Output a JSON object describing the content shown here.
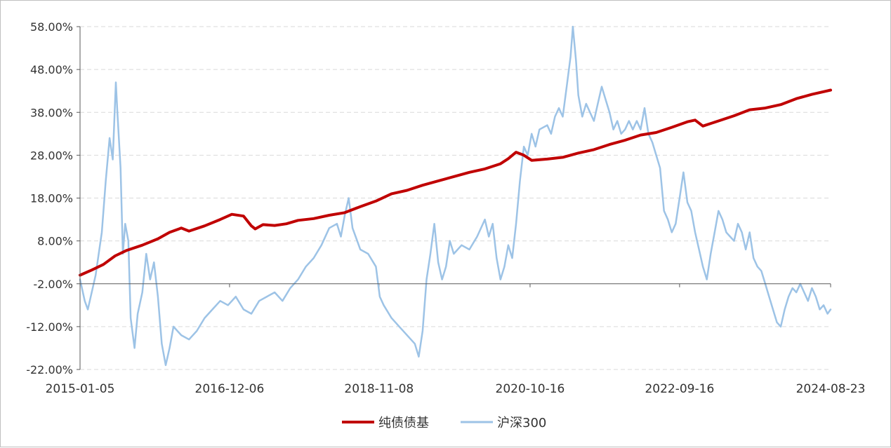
{
  "chart_data": {
    "type": "line",
    "title": "",
    "xlabel": "",
    "ylabel": "",
    "ylim": [
      -22,
      58
    ],
    "y_ticks": [
      "58.00%",
      "48.00%",
      "38.00%",
      "28.00%",
      "18.00%",
      "8.00%",
      "-2.00%",
      "-12.00%",
      "-22.00%"
    ],
    "x_tick_labels": [
      "2015-01-05",
      "2016-12-06",
      "2018-11-08",
      "2020-10-16",
      "2022-09-16",
      "2024-08-23"
    ],
    "x_domain": [
      0,
      9.64
    ],
    "x_ticks": [
      0,
      1.92,
      3.84,
      5.78,
      7.7,
      9.64
    ],
    "grid": true,
    "legend_position": "bottom",
    "series": [
      {
        "name": "纯债债基",
        "color": "#c00000",
        "points": [
          [
            0,
            0
          ],
          [
            0.15,
            1.2
          ],
          [
            0.3,
            2.5
          ],
          [
            0.45,
            4.5
          ],
          [
            0.6,
            5.8
          ],
          [
            0.8,
            7
          ],
          [
            1,
            8.5
          ],
          [
            1.15,
            10
          ],
          [
            1.3,
            11
          ],
          [
            1.4,
            10.3
          ],
          [
            1.6,
            11.5
          ],
          [
            1.8,
            13
          ],
          [
            1.95,
            14.2
          ],
          [
            2.1,
            13.8
          ],
          [
            2.2,
            11.5
          ],
          [
            2.25,
            10.8
          ],
          [
            2.35,
            11.8
          ],
          [
            2.5,
            11.6
          ],
          [
            2.65,
            12
          ],
          [
            2.8,
            12.8
          ],
          [
            3,
            13.2
          ],
          [
            3.2,
            14
          ],
          [
            3.4,
            14.6
          ],
          [
            3.6,
            16
          ],
          [
            3.8,
            17.3
          ],
          [
            4,
            19
          ],
          [
            4.2,
            19.8
          ],
          [
            4.4,
            21
          ],
          [
            4.6,
            22
          ],
          [
            4.8,
            23
          ],
          [
            5,
            24
          ],
          [
            5.2,
            24.8
          ],
          [
            5.4,
            26
          ],
          [
            5.5,
            27.2
          ],
          [
            5.6,
            28.7
          ],
          [
            5.7,
            28
          ],
          [
            5.8,
            26.8
          ],
          [
            6,
            27.1
          ],
          [
            6.2,
            27.5
          ],
          [
            6.4,
            28.5
          ],
          [
            6.6,
            29.3
          ],
          [
            6.8,
            30.5
          ],
          [
            7,
            31.5
          ],
          [
            7.2,
            32.7
          ],
          [
            7.4,
            33.3
          ],
          [
            7.6,
            34.5
          ],
          [
            7.8,
            35.8
          ],
          [
            7.9,
            36.2
          ],
          [
            8,
            34.8
          ],
          [
            8.2,
            36
          ],
          [
            8.4,
            37.2
          ],
          [
            8.6,
            38.6
          ],
          [
            8.8,
            39
          ],
          [
            9,
            39.8
          ],
          [
            9.2,
            41.2
          ],
          [
            9.4,
            42.2
          ],
          [
            9.64,
            43.2
          ]
        ]
      },
      {
        "name": "沪深300",
        "color": "#9dc3e6",
        "points": [
          [
            0,
            -1
          ],
          [
            0.06,
            -6
          ],
          [
            0.1,
            -8
          ],
          [
            0.2,
            0
          ],
          [
            0.28,
            10
          ],
          [
            0.33,
            22
          ],
          [
            0.38,
            32
          ],
          [
            0.42,
            27
          ],
          [
            0.46,
            45
          ],
          [
            0.48,
            38
          ],
          [
            0.52,
            25
          ],
          [
            0.55,
            5
          ],
          [
            0.58,
            12
          ],
          [
            0.62,
            8
          ],
          [
            0.65,
            -10
          ],
          [
            0.7,
            -17
          ],
          [
            0.74,
            -9
          ],
          [
            0.8,
            -4
          ],
          [
            0.85,
            5
          ],
          [
            0.9,
            -1
          ],
          [
            0.95,
            3
          ],
          [
            1,
            -5
          ],
          [
            1.05,
            -16
          ],
          [
            1.1,
            -21
          ],
          [
            1.15,
            -17
          ],
          [
            1.2,
            -12
          ],
          [
            1.3,
            -14
          ],
          [
            1.4,
            -15
          ],
          [
            1.5,
            -13
          ],
          [
            1.6,
            -10
          ],
          [
            1.7,
            -8
          ],
          [
            1.8,
            -6
          ],
          [
            1.9,
            -7
          ],
          [
            2,
            -5
          ],
          [
            2.1,
            -8
          ],
          [
            2.2,
            -9
          ],
          [
            2.3,
            -6
          ],
          [
            2.4,
            -5
          ],
          [
            2.5,
            -4
          ],
          [
            2.6,
            -6
          ],
          [
            2.7,
            -3
          ],
          [
            2.8,
            -1
          ],
          [
            2.9,
            2
          ],
          [
            3,
            4
          ],
          [
            3.1,
            7
          ],
          [
            3.2,
            11
          ],
          [
            3.3,
            12
          ],
          [
            3.35,
            9
          ],
          [
            3.4,
            14
          ],
          [
            3.45,
            18
          ],
          [
            3.5,
            11
          ],
          [
            3.6,
            6
          ],
          [
            3.7,
            5
          ],
          [
            3.8,
            2
          ],
          [
            3.85,
            -5
          ],
          [
            3.9,
            -7
          ],
          [
            4,
            -10
          ],
          [
            4.1,
            -12
          ],
          [
            4.2,
            -14
          ],
          [
            4.3,
            -16
          ],
          [
            4.35,
            -19
          ],
          [
            4.4,
            -13
          ],
          [
            4.45,
            -1
          ],
          [
            4.5,
            5
          ],
          [
            4.55,
            12
          ],
          [
            4.6,
            3
          ],
          [
            4.65,
            -1
          ],
          [
            4.7,
            2
          ],
          [
            4.75,
            8
          ],
          [
            4.8,
            5
          ],
          [
            4.9,
            7
          ],
          [
            5,
            6
          ],
          [
            5.1,
            9
          ],
          [
            5.2,
            13
          ],
          [
            5.25,
            9
          ],
          [
            5.3,
            12
          ],
          [
            5.35,
            4
          ],
          [
            5.4,
            -1
          ],
          [
            5.45,
            2
          ],
          [
            5.5,
            7
          ],
          [
            5.55,
            4
          ],
          [
            5.6,
            12
          ],
          [
            5.65,
            22
          ],
          [
            5.7,
            30
          ],
          [
            5.75,
            28
          ],
          [
            5.8,
            33
          ],
          [
            5.85,
            30
          ],
          [
            5.9,
            34
          ],
          [
            6,
            35
          ],
          [
            6.05,
            33
          ],
          [
            6.1,
            37
          ],
          [
            6.15,
            39
          ],
          [
            6.2,
            37
          ],
          [
            6.25,
            44
          ],
          [
            6.3,
            51
          ],
          [
            6.33,
            58
          ],
          [
            6.37,
            50
          ],
          [
            6.4,
            42
          ],
          [
            6.45,
            37
          ],
          [
            6.5,
            40
          ],
          [
            6.55,
            38
          ],
          [
            6.6,
            36
          ],
          [
            6.65,
            40
          ],
          [
            6.7,
            44
          ],
          [
            6.75,
            41
          ],
          [
            6.8,
            38
          ],
          [
            6.85,
            34
          ],
          [
            6.9,
            36
          ],
          [
            6.95,
            33
          ],
          [
            7,
            34
          ],
          [
            7.05,
            36
          ],
          [
            7.1,
            34
          ],
          [
            7.15,
            36
          ],
          [
            7.2,
            34
          ],
          [
            7.25,
            39
          ],
          [
            7.3,
            33
          ],
          [
            7.35,
            31
          ],
          [
            7.4,
            28
          ],
          [
            7.45,
            25
          ],
          [
            7.5,
            15
          ],
          [
            7.55,
            13
          ],
          [
            7.6,
            10
          ],
          [
            7.65,
            12
          ],
          [
            7.7,
            18
          ],
          [
            7.75,
            24
          ],
          [
            7.8,
            17
          ],
          [
            7.85,
            15
          ],
          [
            7.9,
            10
          ],
          [
            7.95,
            6
          ],
          [
            8,
            2
          ],
          [
            8.05,
            -1
          ],
          [
            8.1,
            5
          ],
          [
            8.15,
            10
          ],
          [
            8.2,
            15
          ],
          [
            8.25,
            13
          ],
          [
            8.3,
            10
          ],
          [
            8.35,
            9
          ],
          [
            8.4,
            8
          ],
          [
            8.45,
            12
          ],
          [
            8.5,
            10
          ],
          [
            8.55,
            6
          ],
          [
            8.6,
            10
          ],
          [
            8.65,
            4
          ],
          [
            8.7,
            2
          ],
          [
            8.75,
            1
          ],
          [
            8.8,
            -2
          ],
          [
            8.85,
            -5
          ],
          [
            8.9,
            -8
          ],
          [
            8.95,
            -11
          ],
          [
            9,
            -12
          ],
          [
            9.05,
            -8
          ],
          [
            9.1,
            -5
          ],
          [
            9.15,
            -3
          ],
          [
            9.2,
            -4
          ],
          [
            9.25,
            -2
          ],
          [
            9.3,
            -4
          ],
          [
            9.35,
            -6
          ],
          [
            9.4,
            -3
          ],
          [
            9.45,
            -5
          ],
          [
            9.5,
            -8
          ],
          [
            9.55,
            -7
          ],
          [
            9.6,
            -9
          ],
          [
            9.64,
            -8
          ]
        ]
      }
    ]
  }
}
